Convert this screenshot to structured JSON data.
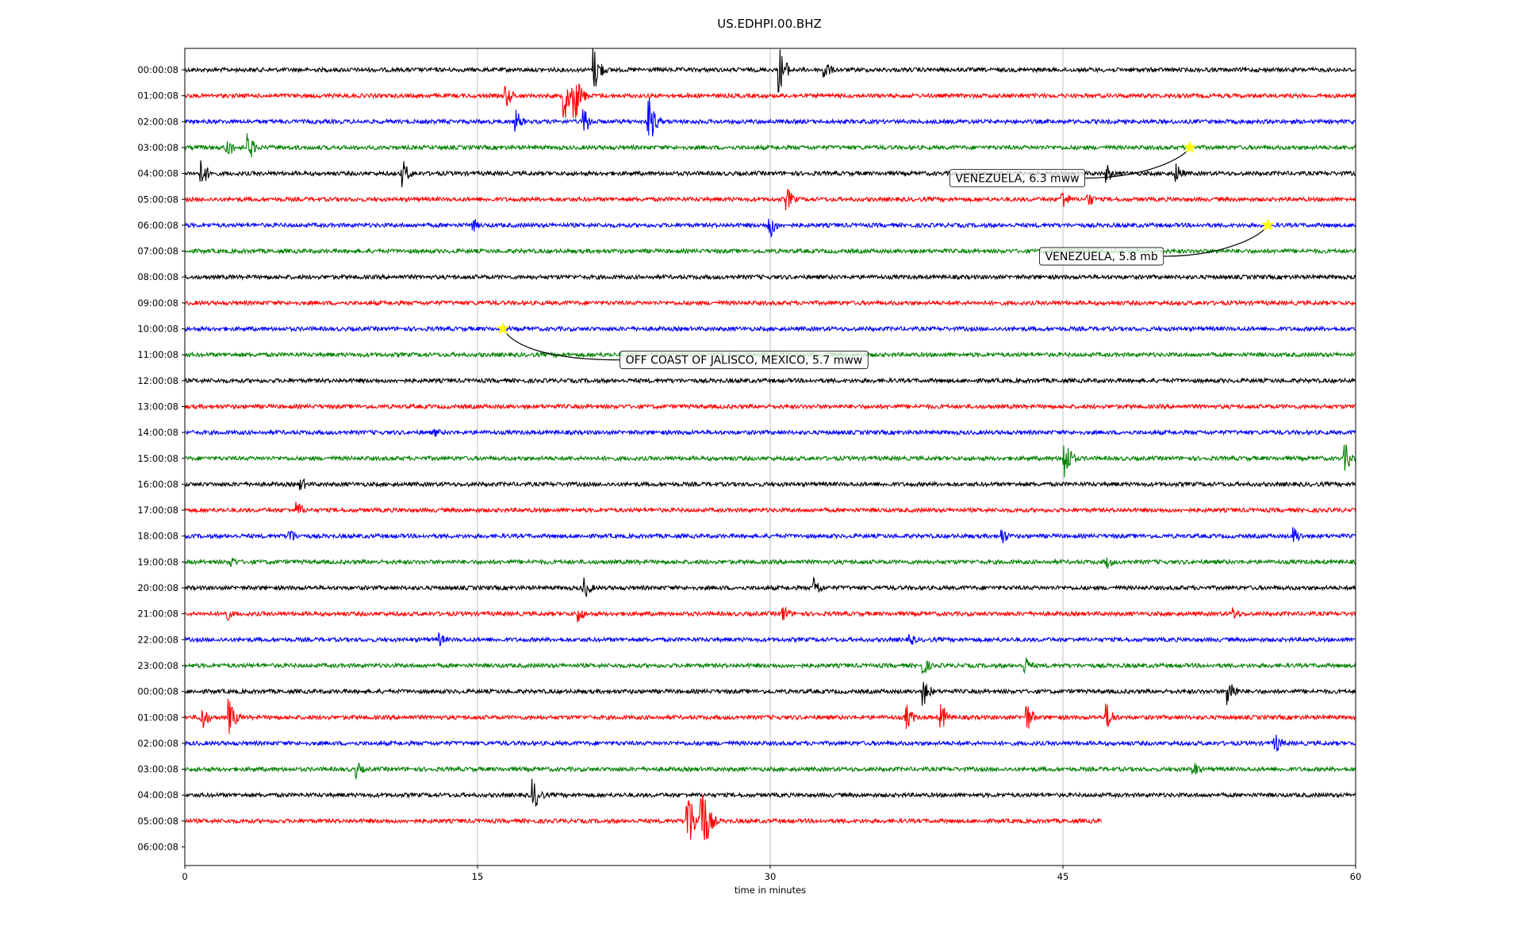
{
  "chart_data": {
    "type": "line",
    "title": "US.EDHPI.00.BHZ",
    "xlabel": "time in minutes",
    "ylabel": "",
    "xlim": [
      0,
      60
    ],
    "x_ticks": [
      "0",
      "15",
      "30",
      "45",
      "60"
    ],
    "grid": "vertical",
    "y_tick_labels": [
      "00:00:08",
      "01:00:08",
      "02:00:08",
      "03:00:08",
      "04:00:08",
      "05:00:08",
      "06:00:08",
      "07:00:08",
      "08:00:08",
      "09:00:08",
      "10:00:08",
      "11:00:08",
      "12:00:08",
      "13:00:08",
      "14:00:08",
      "15:00:08",
      "16:00:08",
      "17:00:08",
      "18:00:08",
      "19:00:08",
      "20:00:08",
      "21:00:08",
      "22:00:08",
      "23:00:08",
      "00:00:08",
      "01:00:08",
      "02:00:08",
      "03:00:08",
      "04:00:08",
      "05:00:08",
      "06:00:08"
    ],
    "trace_colors": [
      "#000000",
      "#ff0000",
      "#0000ff",
      "#008000"
    ],
    "last_trace_end_minute": 47,
    "bursts": [
      {
        "trace": 0,
        "minute": 21.0,
        "amp": 1.0
      },
      {
        "trace": 0,
        "minute": 30.5,
        "amp": 1.0
      },
      {
        "trace": 0,
        "minute": 32.8,
        "amp": 0.5
      },
      {
        "trace": 1,
        "minute": 16.5,
        "amp": 0.5
      },
      {
        "trace": 1,
        "minute": 19.5,
        "amp": 1.0
      },
      {
        "trace": 1,
        "minute": 20.0,
        "amp": 1.2
      },
      {
        "trace": 2,
        "minute": 17.0,
        "amp": 0.5
      },
      {
        "trace": 2,
        "minute": 20.5,
        "amp": 0.6
      },
      {
        "trace": 2,
        "minute": 23.8,
        "amp": 1.1
      },
      {
        "trace": 3,
        "minute": 2.2,
        "amp": 0.5
      },
      {
        "trace": 3,
        "minute": 3.3,
        "amp": 0.6
      },
      {
        "trace": 4,
        "minute": 0.9,
        "amp": 0.6
      },
      {
        "trace": 4,
        "minute": 11.2,
        "amp": 0.6
      },
      {
        "trace": 4,
        "minute": 47.3,
        "amp": 0.4
      },
      {
        "trace": 4,
        "minute": 50.8,
        "amp": 0.5
      },
      {
        "trace": 5,
        "minute": 30.9,
        "amp": 0.5
      },
      {
        "trace": 5,
        "minute": 45.0,
        "amp": 0.5
      },
      {
        "trace": 5,
        "minute": 46.3,
        "amp": 0.4
      },
      {
        "trace": 6,
        "minute": 14.8,
        "amp": 0.3
      },
      {
        "trace": 6,
        "minute": 30.0,
        "amp": 0.6
      },
      {
        "trace": 14,
        "minute": 12.9,
        "amp": 0.2
      },
      {
        "trace": 15,
        "minute": 45.1,
        "amp": 1.0
      },
      {
        "trace": 15,
        "minute": 59.5,
        "amp": 0.6
      },
      {
        "trace": 16,
        "minute": 6.0,
        "amp": 0.3
      },
      {
        "trace": 17,
        "minute": 5.8,
        "amp": 0.4
      },
      {
        "trace": 18,
        "minute": 5.4,
        "amp": 0.4
      },
      {
        "trace": 18,
        "minute": 41.9,
        "amp": 0.4
      },
      {
        "trace": 18,
        "minute": 56.9,
        "amp": 0.4
      },
      {
        "trace": 19,
        "minute": 2.4,
        "amp": 0.3
      },
      {
        "trace": 19,
        "minute": 47.3,
        "amp": 0.3
      },
      {
        "trace": 20,
        "minute": 20.5,
        "amp": 0.5
      },
      {
        "trace": 20,
        "minute": 32.3,
        "amp": 0.5
      },
      {
        "trace": 21,
        "minute": 2.1,
        "amp": 0.4
      },
      {
        "trace": 21,
        "minute": 20.2,
        "amp": 0.4
      },
      {
        "trace": 21,
        "minute": 30.7,
        "amp": 0.4
      },
      {
        "trace": 21,
        "minute": 53.8,
        "amp": 0.3
      },
      {
        "trace": 22,
        "minute": 13.1,
        "amp": 0.3
      },
      {
        "trace": 22,
        "minute": 37.2,
        "amp": 0.3
      },
      {
        "trace": 23,
        "minute": 37.9,
        "amp": 0.4
      },
      {
        "trace": 23,
        "minute": 43.1,
        "amp": 0.4
      },
      {
        "trace": 24,
        "minute": 37.9,
        "amp": 0.6
      },
      {
        "trace": 24,
        "minute": 53.5,
        "amp": 0.7
      },
      {
        "trace": 25,
        "minute": 0.9,
        "amp": 0.6
      },
      {
        "trace": 25,
        "minute": 2.3,
        "amp": 0.8
      },
      {
        "trace": 25,
        "minute": 37.0,
        "amp": 0.6
      },
      {
        "trace": 25,
        "minute": 38.8,
        "amp": 0.6
      },
      {
        "trace": 25,
        "minute": 43.2,
        "amp": 0.6
      },
      {
        "trace": 25,
        "minute": 47.3,
        "amp": 0.6
      },
      {
        "trace": 26,
        "minute": 55.9,
        "amp": 0.5
      },
      {
        "trace": 27,
        "minute": 8.8,
        "amp": 0.4
      },
      {
        "trace": 27,
        "minute": 51.7,
        "amp": 0.4
      },
      {
        "trace": 28,
        "minute": 17.9,
        "amp": 0.7
      },
      {
        "trace": 29,
        "minute": 25.8,
        "amp": 1.5
      },
      {
        "trace": 29,
        "minute": 26.5,
        "amp": 2.0
      }
    ],
    "events": [
      {
        "label": "VENEZUELA, 6.3 mww",
        "trace": 3,
        "minute": 51.5,
        "label_minute": 39.2,
        "label_trace": 4.18
      },
      {
        "label": "VENEZUELA, 5.8 mb",
        "trace": 6,
        "minute": 55.5,
        "label_minute": 43.8,
        "label_trace": 7.2
      },
      {
        "label": "OFF COAST OF JALISCO, MEXICO, 5.7 mww",
        "trace": 10,
        "minute": 16.3,
        "label_minute": 22.3,
        "label_trace": 11.2
      }
    ]
  }
}
